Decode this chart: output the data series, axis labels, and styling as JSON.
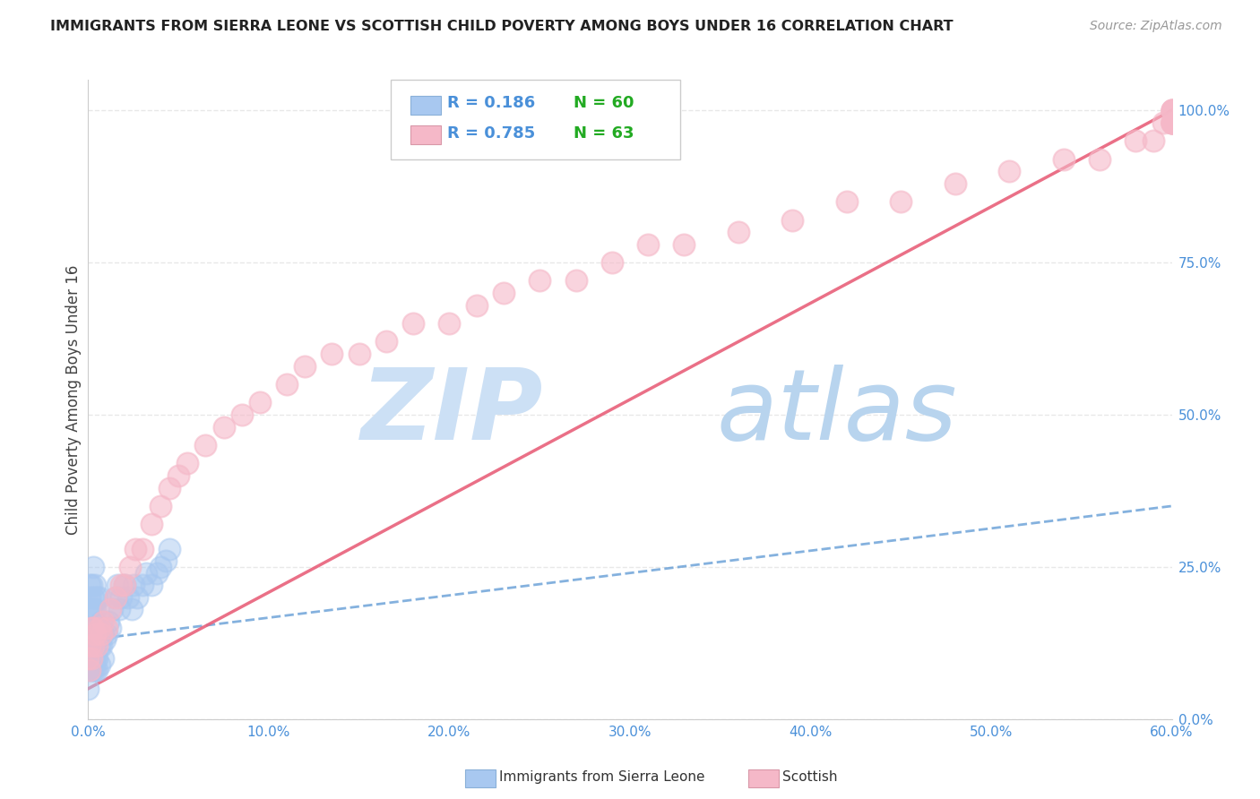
{
  "title": "IMMIGRANTS FROM SIERRA LEONE VS SCOTTISH CHILD POVERTY AMONG BOYS UNDER 16 CORRELATION CHART",
  "source": "Source: ZipAtlas.com",
  "ylabel": "Child Poverty Among Boys Under 16",
  "legend_blue_R": "0.186",
  "legend_blue_N": "60",
  "legend_pink_R": "0.785",
  "legend_pink_N": "63",
  "blue_color": "#a8c8f0",
  "pink_color": "#f5b8c8",
  "blue_line_color": "#5090d0",
  "pink_line_color": "#e8607a",
  "legend_R_color": "#4a90d9",
  "legend_N_color": "#22aa22",
  "blue_scatter_x": [
    0.0,
    0.0,
    0.001,
    0.001,
    0.001,
    0.001,
    0.001,
    0.001,
    0.002,
    0.002,
    0.002,
    0.002,
    0.002,
    0.002,
    0.003,
    0.003,
    0.003,
    0.003,
    0.003,
    0.003,
    0.003,
    0.004,
    0.004,
    0.004,
    0.004,
    0.004,
    0.004,
    0.005,
    0.005,
    0.005,
    0.005,
    0.006,
    0.006,
    0.006,
    0.006,
    0.007,
    0.007,
    0.008,
    0.008,
    0.009,
    0.01,
    0.011,
    0.012,
    0.013,
    0.015,
    0.016,
    0.017,
    0.018,
    0.02,
    0.022,
    0.024,
    0.025,
    0.027,
    0.03,
    0.032,
    0.035,
    0.038,
    0.04,
    0.043,
    0.045
  ],
  "blue_scatter_y": [
    0.05,
    0.08,
    0.1,
    0.12,
    0.15,
    0.18,
    0.2,
    0.22,
    0.08,
    0.1,
    0.12,
    0.15,
    0.18,
    0.22,
    0.08,
    0.1,
    0.12,
    0.15,
    0.18,
    0.2,
    0.25,
    0.08,
    0.1,
    0.13,
    0.15,
    0.18,
    0.22,
    0.08,
    0.1,
    0.14,
    0.2,
    0.09,
    0.12,
    0.15,
    0.2,
    0.12,
    0.16,
    0.1,
    0.14,
    0.13,
    0.14,
    0.16,
    0.15,
    0.18,
    0.2,
    0.22,
    0.18,
    0.2,
    0.22,
    0.2,
    0.18,
    0.22,
    0.2,
    0.22,
    0.24,
    0.22,
    0.24,
    0.25,
    0.26,
    0.28
  ],
  "pink_scatter_x": [
    0.0,
    0.001,
    0.001,
    0.002,
    0.002,
    0.003,
    0.003,
    0.004,
    0.005,
    0.006,
    0.007,
    0.008,
    0.01,
    0.012,
    0.015,
    0.018,
    0.02,
    0.023,
    0.026,
    0.03,
    0.035,
    0.04,
    0.045,
    0.05,
    0.055,
    0.065,
    0.075,
    0.085,
    0.095,
    0.11,
    0.12,
    0.135,
    0.15,
    0.165,
    0.18,
    0.2,
    0.215,
    0.23,
    0.25,
    0.27,
    0.29,
    0.31,
    0.33,
    0.36,
    0.39,
    0.42,
    0.45,
    0.48,
    0.51,
    0.54,
    0.56,
    0.58,
    0.59,
    0.595,
    0.6,
    0.6,
    0.6,
    0.6,
    0.6,
    0.6,
    0.6,
    0.6,
    0.6
  ],
  "pink_scatter_y": [
    0.1,
    0.08,
    0.12,
    0.1,
    0.15,
    0.12,
    0.15,
    0.14,
    0.12,
    0.15,
    0.14,
    0.16,
    0.15,
    0.18,
    0.2,
    0.22,
    0.22,
    0.25,
    0.28,
    0.28,
    0.32,
    0.35,
    0.38,
    0.4,
    0.42,
    0.45,
    0.48,
    0.5,
    0.52,
    0.55,
    0.58,
    0.6,
    0.6,
    0.62,
    0.65,
    0.65,
    0.68,
    0.7,
    0.72,
    0.72,
    0.75,
    0.78,
    0.78,
    0.8,
    0.82,
    0.85,
    0.85,
    0.88,
    0.9,
    0.92,
    0.92,
    0.95,
    0.95,
    0.98,
    0.98,
    1.0,
    0.98,
    1.0,
    0.98,
    1.0,
    0.98,
    1.0,
    0.98
  ],
  "xlim": [
    0.0,
    0.6
  ],
  "ylim": [
    0.0,
    1.05
  ],
  "xticks": [
    0.0,
    0.1,
    0.2,
    0.3,
    0.4,
    0.5,
    0.6
  ],
  "yticks": [
    0.0,
    0.25,
    0.5,
    0.75,
    1.0
  ],
  "xtick_labels": [
    "0.0%",
    "10.0%",
    "20.0%",
    "30.0%",
    "40.0%",
    "50.0%",
    "60.0%"
  ],
  "ytick_labels": [
    "0.0%",
    "25.0%",
    "50.0%",
    "75.0%",
    "100.0%"
  ],
  "background_color": "#ffffff",
  "grid_color": "#e8e8e8",
  "watermark_zip_color": "#cce0f5",
  "watermark_atlas_color": "#b8d4ee"
}
